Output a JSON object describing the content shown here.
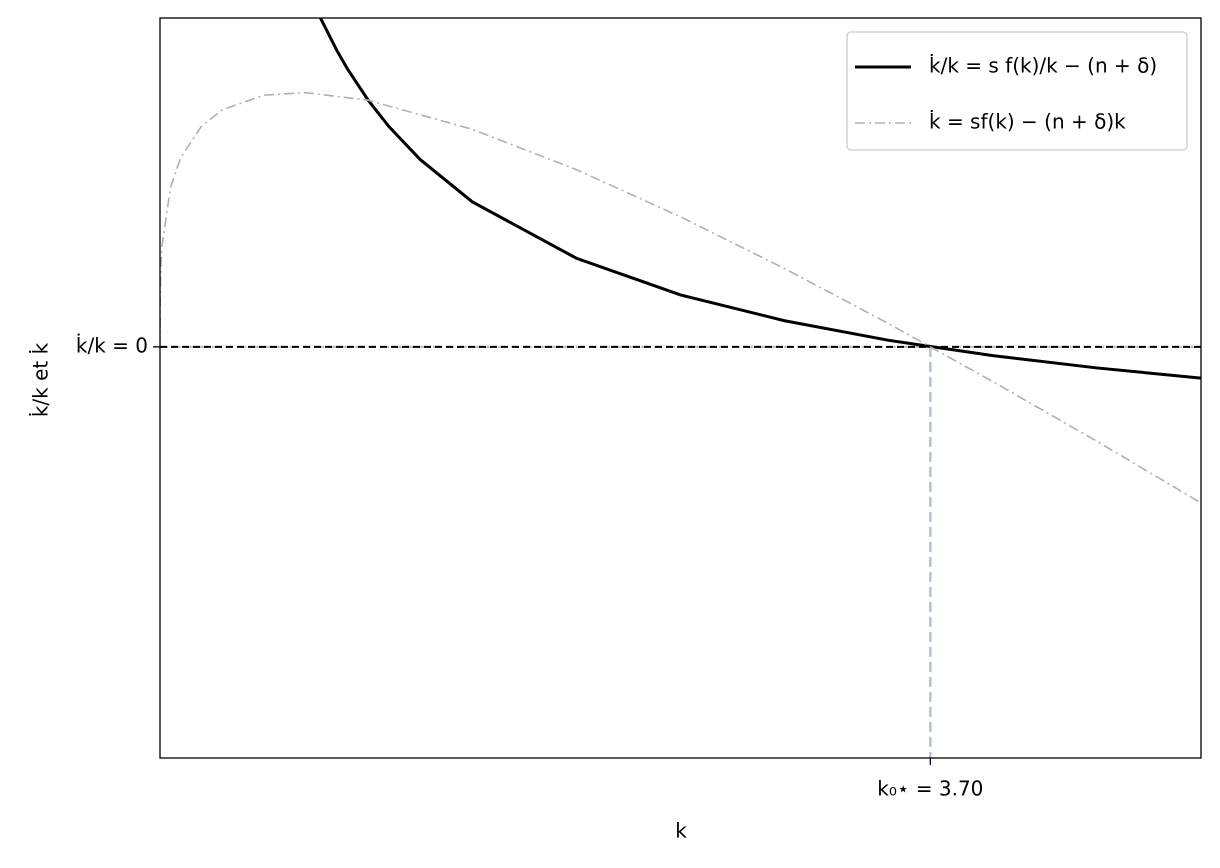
{
  "chart_data": {
    "type": "line",
    "xlabel": "k",
    "ylabel": "k̇/k et k̇",
    "xlim": [
      0,
      5
    ],
    "ylim": [
      -0.25,
      0.2
    ],
    "xticks": [
      {
        "value": 3.7,
        "label": "k₀⋆ = 3.70"
      }
    ],
    "yticks": [
      {
        "value": 0,
        "label": "k̇/k = 0"
      }
    ],
    "legend": "upper right",
    "series": [
      {
        "name": "k̇/k = s f(k)/k − (n + δ)",
        "color": "#000000",
        "linestyle": "solid",
        "x": [
          0.77,
          0.85,
          0.9,
          1,
          1.1,
          1.25,
          1.5,
          2,
          2.5,
          3,
          3.5,
          4,
          4.5,
          5
        ],
        "values": [
          0.2002,
          0.1801,
          0.1691,
          0.15,
          0.1339,
          0.1139,
          0.0882,
          0.0539,
          0.0316,
          0.0159,
          0.004,
          -0.0053,
          -0.0128,
          -0.019
        ]
      },
      {
        "name": "k̇ = sf(k) − (n + δ)k",
        "color": "#b0b0b0",
        "linestyle": "dashdot",
        "x": [
          0,
          0.001,
          0.005,
          0.01,
          0.05,
          0.1,
          0.2,
          0.3,
          0.5,
          0.7,
          1,
          1.5,
          2,
          2.5,
          3,
          3.5,
          4,
          4.5,
          5
        ],
        "values": [
          0,
          0.0315,
          0.0505,
          0.0618,
          0.0968,
          0.1153,
          0.1343,
          0.1442,
          0.1531,
          0.1546,
          0.15,
          0.1323,
          0.1078,
          0.0791,
          0.0476,
          0.0141,
          -0.0211,
          -0.0574,
          -0.0949
        ]
      }
    ]
  }
}
